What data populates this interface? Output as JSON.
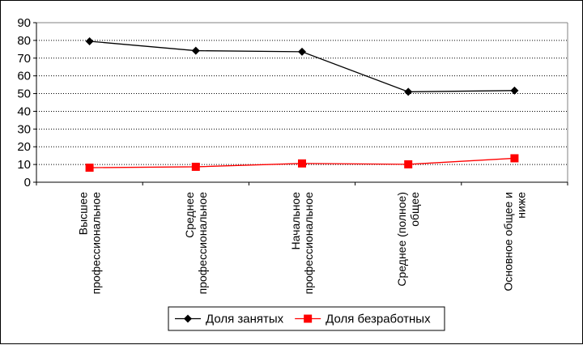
{
  "chart_data": {
    "type": "line",
    "categories": [
      [
        "Высшее",
        "профессиональное"
      ],
      [
        "Среднее",
        "профессиональное"
      ],
      [
        "Начальное",
        "профессиональное"
      ],
      [
        "Среднее (полное)",
        "общее"
      ],
      [
        "Основное общее и",
        "ниже"
      ]
    ],
    "ylim": [
      0,
      90
    ],
    "yticks": [
      0,
      10,
      20,
      30,
      40,
      50,
      60,
      70,
      80,
      90
    ],
    "grid": "horizontal dotted",
    "legend_position": "bottom",
    "series": [
      {
        "name": "Доля занятых",
        "values": [
          79.5,
          74.2,
          73.6,
          51.0,
          51.7
        ],
        "color": "#000000",
        "marker": "diamond"
      },
      {
        "name": "Доля безработных",
        "values": [
          8.2,
          8.7,
          10.6,
          10.1,
          13.5
        ],
        "color": "#ff0000",
        "marker": "square"
      }
    ]
  }
}
